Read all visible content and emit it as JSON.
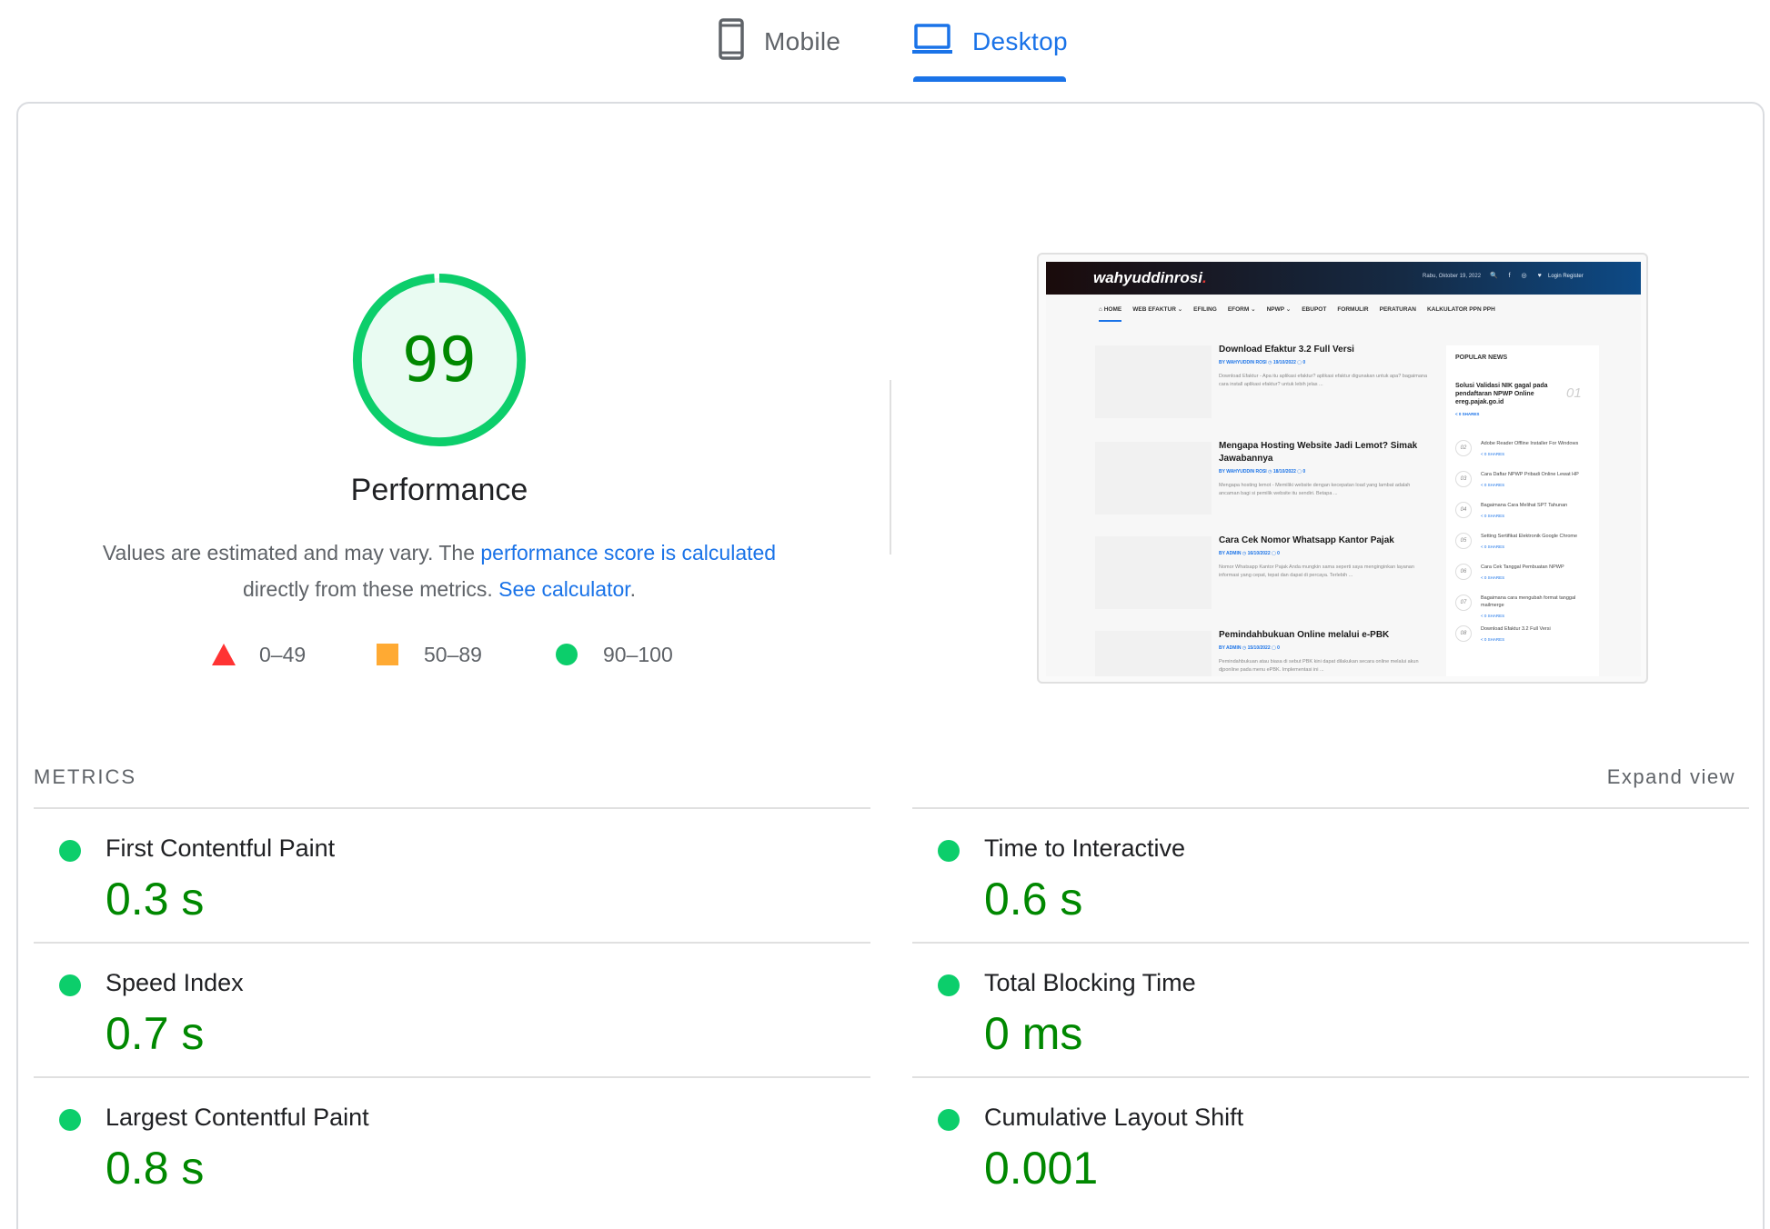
{
  "tabs": [
    {
      "label": "Mobile",
      "icon": "smartphone-icon",
      "active": false
    },
    {
      "label": "Desktop",
      "icon": "laptop-icon",
      "active": true
    }
  ],
  "colors": {
    "accent": "#1a73e8",
    "pass": "#0cce6b",
    "pass_text": "#008800",
    "average": "#ffaa33",
    "fail": "#ff3333"
  },
  "gauge": {
    "score": "99",
    "title": "Performance",
    "fraction": 0.99
  },
  "description": {
    "text1": "Values are estimated and may vary. The ",
    "link1": "performance score is calculated",
    "text2": " directly from these metrics. ",
    "link2": "See calculator",
    "text3": "."
  },
  "legend": [
    {
      "range": "0–49",
      "shape": "triangle"
    },
    {
      "range": "50–89",
      "shape": "square"
    },
    {
      "range": "90–100",
      "shape": "circle"
    }
  ],
  "screenshot": {
    "logo": "wahyuddinrosi",
    "date": "Rabu, Oktober 19, 2022",
    "header_icons": "🔍 f ◎ ♥",
    "login": "Login  Register",
    "nav": [
      "HOME",
      "WEB EFAKTUR",
      "EFILING",
      "EFORM",
      "NPWP",
      "EBUPOT",
      "FORMULIR",
      "PERATURAN",
      "KALKULATOR PPN PPH"
    ],
    "articles": [
      {
        "title": "Download Efaktur 3.2 Full Versi",
        "meta": "BY WAHYUDDIN ROSI  ◷ 19/10/2022  ▢ 0",
        "excerpt": "Download Efaktur - Apa itu aplikasi efaktur? aplikasi efaktur digunakan untuk apa? bagaimana cara install aplikasi efaktur? untuk lebih jelas ..."
      },
      {
        "title": "Mengapa Hosting Website Jadi Lemot? Simak Jawabannya",
        "meta": "BY WAHYUDDIN ROSI  ◷ 18/10/2022  ▢ 0",
        "excerpt": "Mengapa hosting lemot - Memiliki website dengan kecepatan load yang lambat adalah ancaman bagi si pemilik website itu sendiri. Betapa ..."
      },
      {
        "title": "Cara Cek Nomor Whatsapp Kantor Pajak",
        "meta": "BY ADMIN  ◷ 16/10/2022  ▢ 0",
        "excerpt": "Nomor Whatsapp Kantor Pajak Anda mungkin sama seperti saya menginginkan layanan informasi yang cepat, tepat dan dapat di percaya. Terlebih ..."
      },
      {
        "title": "Pemindahbukuan Online melalui e-PBK",
        "meta": "BY ADMIN  ◷ 15/10/2022  ▢ 0",
        "excerpt": "Pemindahbukuan atau biasa di sebut PBK kini dapat dilakukan secara online melalui akun djponline pada menu ePBK. Implementasi ini ..."
      }
    ],
    "popular_title": "POPULAR NEWS",
    "popular_top": {
      "title": "Solusi Validasi NIK gagal pada pendaftaran NPWP Online ereg.pajak.go.id",
      "num": "01",
      "shares": "< 0 SHARES"
    },
    "popular": [
      {
        "num": "02",
        "text": "Adobe Reader Offline Installer For Windows",
        "shares": "< 0 SHARES"
      },
      {
        "num": "03",
        "text": "Cara Daftar NPWP Pribadi Online Lewat HP",
        "shares": "< 0 SHARES"
      },
      {
        "num": "04",
        "text": "Bagaimana Cara Melihat SPT Tahunan",
        "shares": "< 0 SHARES"
      },
      {
        "num": "05",
        "text": "Setting Sertifikat Elektronik Google Chrome",
        "shares": "< 0 SHARES"
      },
      {
        "num": "06",
        "text": "Cara Cek Tanggal Pembuatan NPWP",
        "shares": "< 0 SHARES"
      },
      {
        "num": "07",
        "text": "Bagaimana cara mengubah format tanggal mailmerge",
        "shares": "< 0 SHARES"
      },
      {
        "num": "08",
        "text": "Download Efaktur 3.2 Full Versi",
        "shares": "< 0 SHARES"
      }
    ]
  },
  "metrics": {
    "heading": "METRICS",
    "expand_label": "Expand view",
    "left": [
      {
        "label": "First Contentful Paint",
        "value": "0.3 s"
      },
      {
        "label": "Speed Index",
        "value": "0.7 s"
      },
      {
        "label": "Largest Contentful Paint",
        "value": "0.8 s"
      }
    ],
    "right": [
      {
        "label": "Time to Interactive",
        "value": "0.6 s"
      },
      {
        "label": "Total Blocking Time",
        "value": "0 ms"
      },
      {
        "label": "Cumulative Layout Shift",
        "value": "0.001"
      }
    ]
  }
}
